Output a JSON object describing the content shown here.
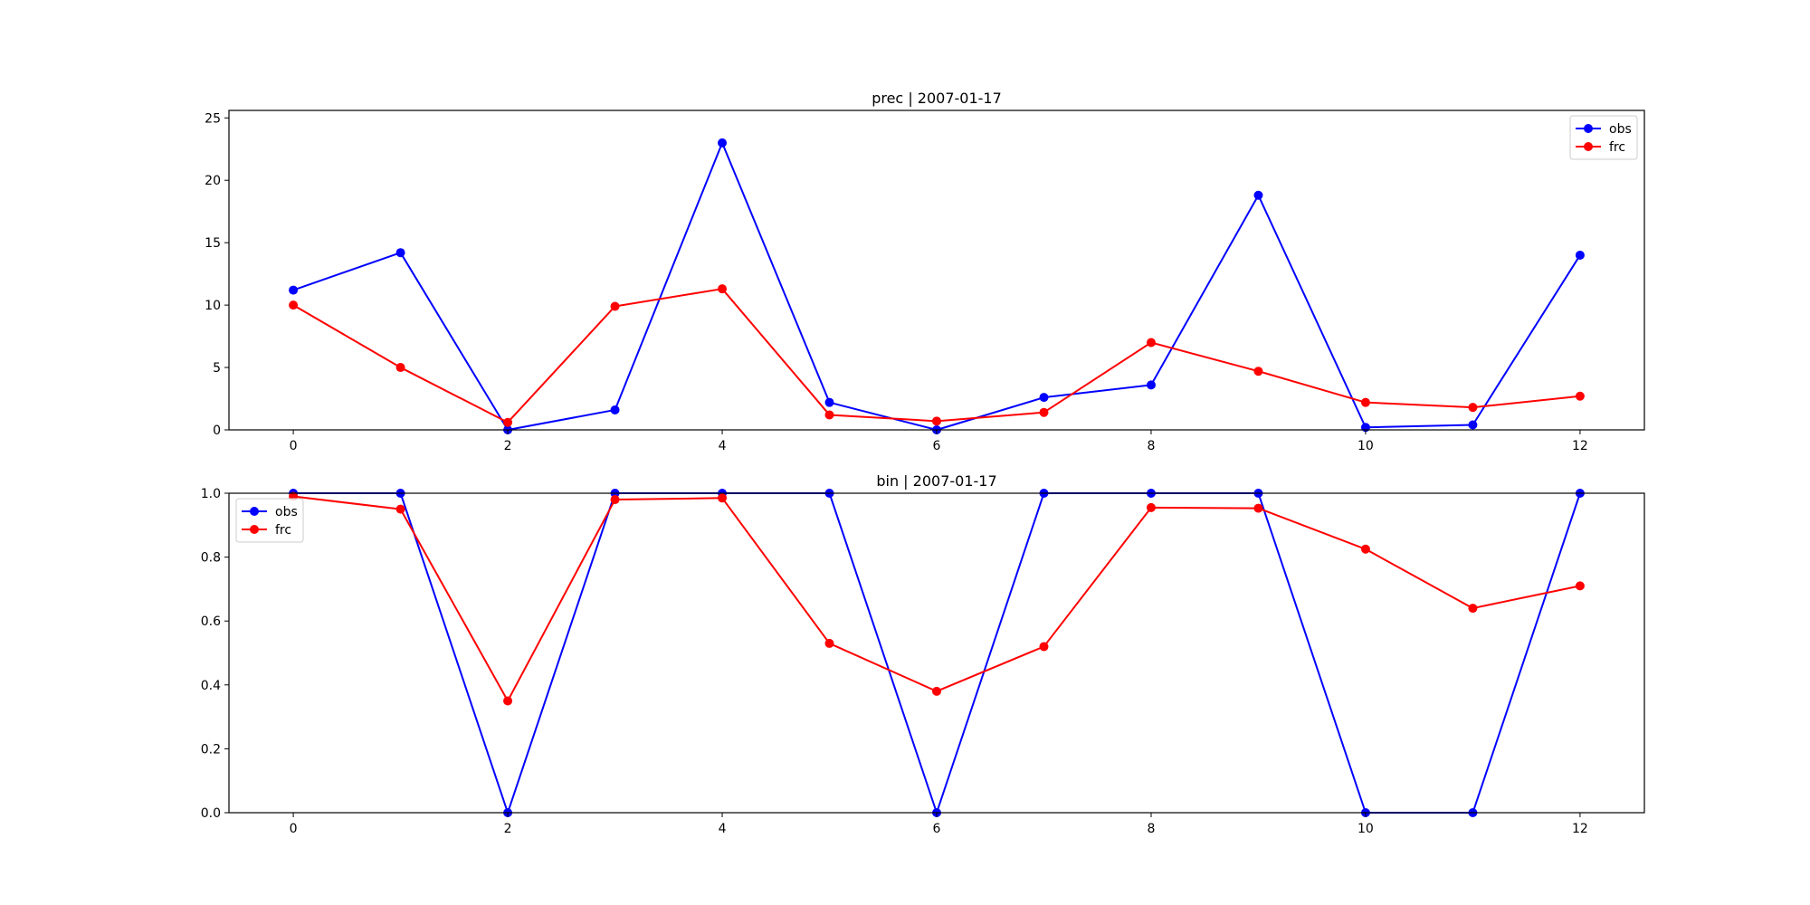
{
  "chart_data": [
    {
      "type": "line",
      "title": "prec | 2007-01-17",
      "xlabel": "",
      "ylabel": "",
      "x": [
        0,
        1,
        2,
        3,
        4,
        5,
        6,
        7,
        8,
        9,
        10,
        11,
        12
      ],
      "xlim": [
        -0.6,
        12.6
      ],
      "ylim": [
        0,
        25.6
      ],
      "xticks": [
        0,
        2,
        4,
        6,
        8,
        10,
        12
      ],
      "yticks": [
        0,
        5,
        10,
        15,
        20,
        25
      ],
      "legend": "upper right",
      "grid": false,
      "series": [
        {
          "name": "obs",
          "color": "#0000ff",
          "values": [
            11.2,
            14.2,
            0.0,
            1.6,
            23.0,
            2.2,
            0.0,
            2.6,
            3.6,
            18.8,
            0.2,
            0.4,
            14.0
          ]
        },
        {
          "name": "frc",
          "color": "#ff0000",
          "values": [
            10.0,
            5.0,
            0.6,
            9.9,
            11.3,
            1.2,
            0.7,
            1.4,
            7.0,
            4.7,
            2.2,
            1.8,
            2.7
          ]
        }
      ]
    },
    {
      "type": "line",
      "title": "bin | 2007-01-17",
      "xlabel": "",
      "ylabel": "",
      "x": [
        0,
        1,
        2,
        3,
        4,
        5,
        6,
        7,
        8,
        9,
        10,
        11,
        12
      ],
      "xlim": [
        -0.6,
        12.6
      ],
      "ylim": [
        0.0,
        1.0
      ],
      "xticks": [
        0,
        2,
        4,
        6,
        8,
        10,
        12
      ],
      "yticks": [
        0.0,
        0.2,
        0.4,
        0.6,
        0.8,
        1.0
      ],
      "legend": "upper left",
      "grid": false,
      "series": [
        {
          "name": "obs",
          "color": "#0000ff",
          "values": [
            1,
            1,
            0,
            1,
            1,
            1,
            0,
            1,
            1,
            1,
            0,
            0,
            1
          ]
        },
        {
          "name": "frc",
          "color": "#ff0000",
          "values": [
            0.99,
            0.95,
            0.35,
            0.98,
            0.985,
            0.53,
            0.38,
            0.52,
            0.955,
            0.953,
            0.825,
            0.64,
            0.71
          ]
        }
      ]
    }
  ]
}
